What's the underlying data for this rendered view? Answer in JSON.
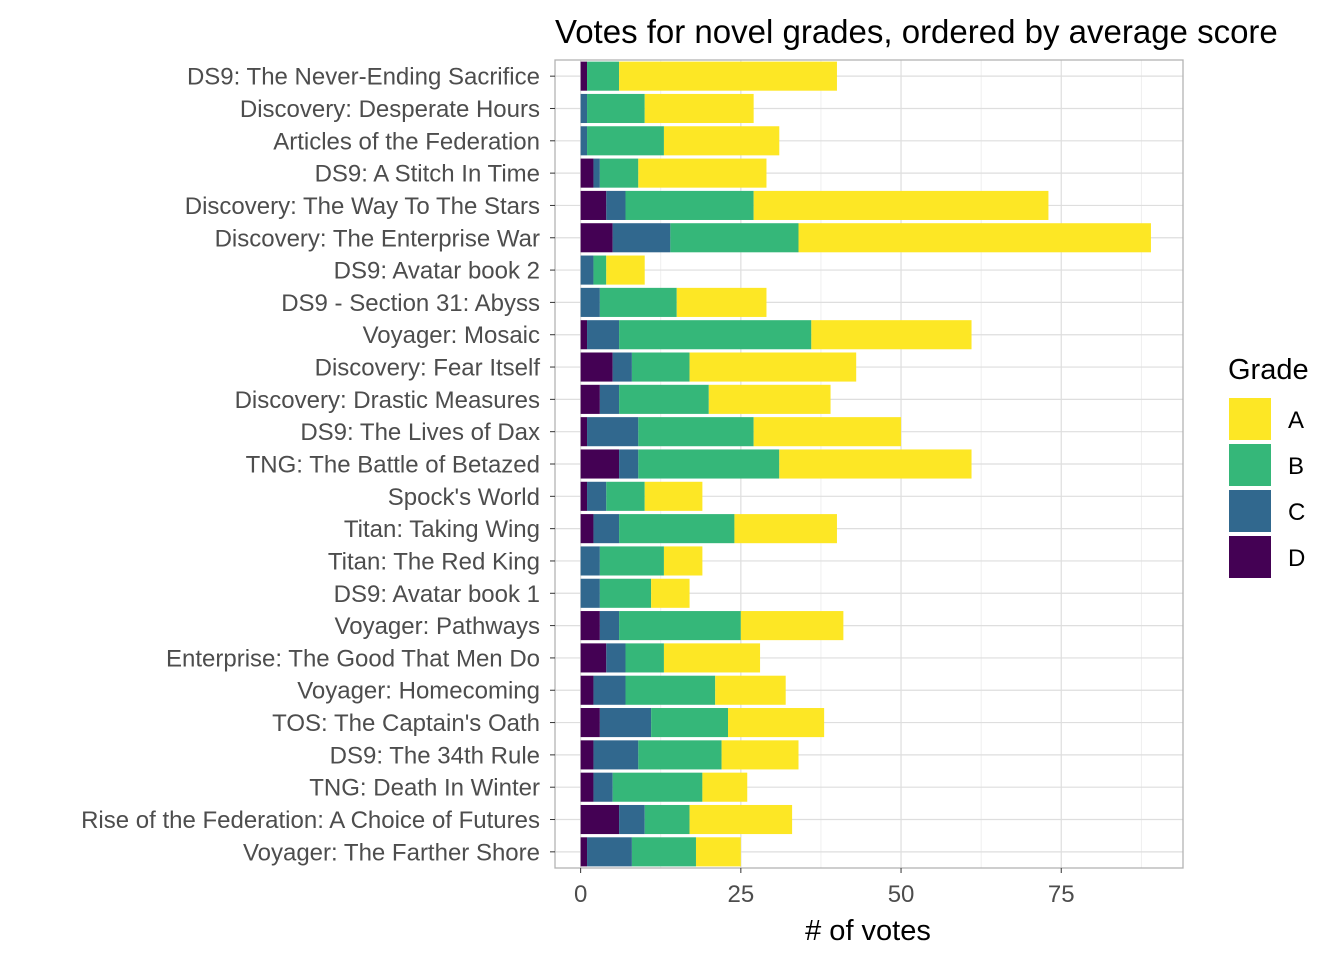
{
  "chart_data": {
    "type": "bar",
    "orientation": "horizontal",
    "stacked": true,
    "title": "Votes for novel grades, ordered by average score",
    "xlabel": "# of votes",
    "ylabel": "",
    "xlim": [
      -4,
      94
    ],
    "x_ticks": [
      0,
      25,
      50,
      75
    ],
    "x_tick_labels": [
      "0",
      "25",
      "50",
      "75"
    ],
    "grid": true,
    "legend": {
      "title": "Grade",
      "position": "right",
      "order": [
        "A",
        "B",
        "C",
        "D"
      ]
    },
    "colors": {
      "A": "#fde725",
      "B": "#35b779",
      "C": "#31688e",
      "D": "#440154"
    },
    "categories": [
      "DS9: The Never-Ending Sacrifice",
      "Discovery: Desperate Hours",
      "Articles of the Federation",
      "DS9: A Stitch In Time",
      "Discovery: The Way To The Stars",
      "Discovery: The Enterprise War",
      "DS9: Avatar book 2",
      "DS9 - Section 31: Abyss",
      "Voyager: Mosaic",
      "Discovery: Fear Itself",
      "Discovery: Drastic Measures",
      "DS9: The Lives of Dax",
      "TNG: The Battle of Betazed",
      "Spock's World",
      "Titan: Taking Wing",
      "Titan: The Red King",
      "DS9: Avatar book 1",
      "Voyager: Pathways",
      "Enterprise: The Good That Men Do ",
      "Voyager: Homecoming",
      "TOS: The Captain's Oath",
      "DS9: The 34th Rule",
      "TNG: Death In Winter",
      "Rise of the Federation: A Choice of Futures",
      "Voyager: The Farther Shore"
    ],
    "series": [
      {
        "name": "D",
        "values": [
          1,
          0,
          0,
          2,
          4,
          5,
          0,
          0,
          1,
          5,
          3,
          1,
          6,
          1,
          2,
          0,
          0,
          3,
          4,
          2,
          3,
          2,
          2,
          6,
          1
        ]
      },
      {
        "name": "C",
        "values": [
          0,
          1,
          1,
          1,
          3,
          9,
          2,
          3,
          5,
          3,
          3,
          8,
          3,
          3,
          4,
          3,
          3,
          3,
          3,
          5,
          8,
          7,
          3,
          4,
          7
        ]
      },
      {
        "name": "B",
        "values": [
          5,
          9,
          12,
          6,
          20,
          20,
          2,
          12,
          30,
          9,
          14,
          18,
          22,
          6,
          18,
          10,
          8,
          19,
          6,
          14,
          12,
          13,
          14,
          7,
          10
        ]
      },
      {
        "name": "A",
        "values": [
          34,
          17,
          18,
          20,
          46,
          55,
          6,
          14,
          25,
          26,
          19,
          23,
          30,
          9,
          16,
          6,
          6,
          16,
          15,
          11,
          15,
          12,
          7,
          16,
          7
        ]
      }
    ]
  }
}
